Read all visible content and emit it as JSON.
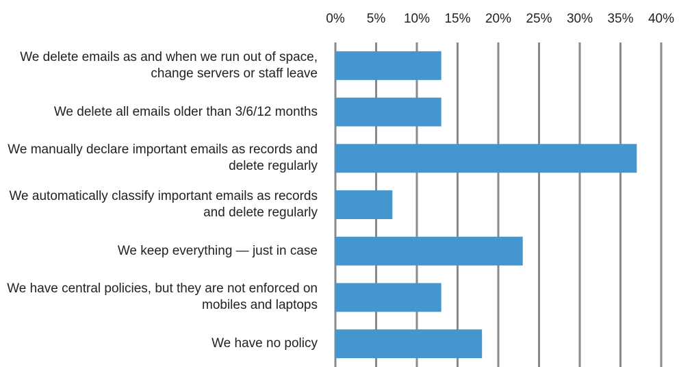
{
  "chart_data": {
    "type": "barh",
    "categories": [
      "We delete emails as and when we run out of space, change servers or staff leave",
      "We delete all emails older than 3/6/12 months",
      "We manually declare important emails as records and delete regularly",
      "We automatically classify important emails as records and delete regularly",
      "We keep everything — just in case",
      "We have central policies, but they are not enforced on mobiles and laptops",
      "We have no policy"
    ],
    "values": [
      13,
      13,
      37,
      7,
      23,
      13,
      18
    ],
    "color": "#4596cf",
    "xlim": [
      0,
      40
    ],
    "xticks": [
      {
        "value": 0,
        "label": "0%"
      },
      {
        "value": 5,
        "label": "5%"
      },
      {
        "value": 10,
        "label": "10%"
      },
      {
        "value": 15,
        "label": "15%"
      },
      {
        "value": 20,
        "label": "20%"
      },
      {
        "value": 25,
        "label": "25%"
      },
      {
        "value": 30,
        "label": "30%"
      },
      {
        "value": 35,
        "label": "35%"
      },
      {
        "value": 40,
        "label": "40%"
      }
    ],
    "grid": true
  }
}
